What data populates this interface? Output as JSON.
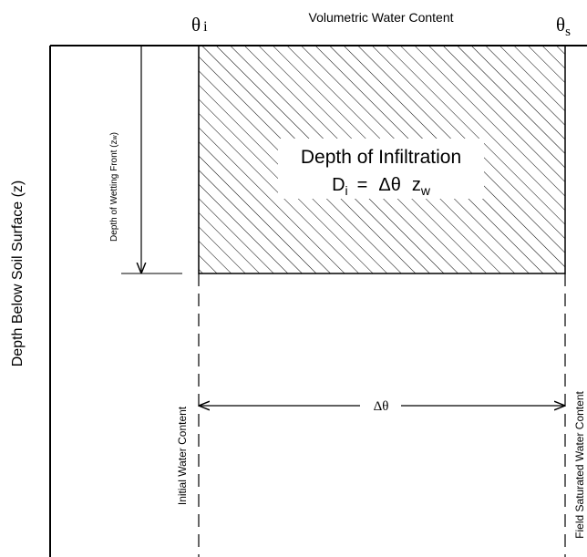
{
  "axis_title": "Volumetric Water Content",
  "theta_i": {
    "symbol": "θ",
    "subscript": "i"
  },
  "theta_s": {
    "symbol": "θ",
    "subscript": "s"
  },
  "vertical_axis_title": "Depth Below Soil Surface (z)",
  "wetting_front": {
    "text": "Depth of Wetting Front (z",
    "subscript": "w",
    "close": ")"
  },
  "infiltration": {
    "title": "Depth of Infiltration",
    "formula": {
      "lhs": "D",
      "lhs_sub": "i",
      "eq": "=",
      "delta": "Δθ",
      "z": "z",
      "z_sub": "w"
    }
  },
  "initial_label": "Initial Water Content",
  "saturated_label": "Field Saturated Water Content",
  "delta_label": "Δθ"
}
